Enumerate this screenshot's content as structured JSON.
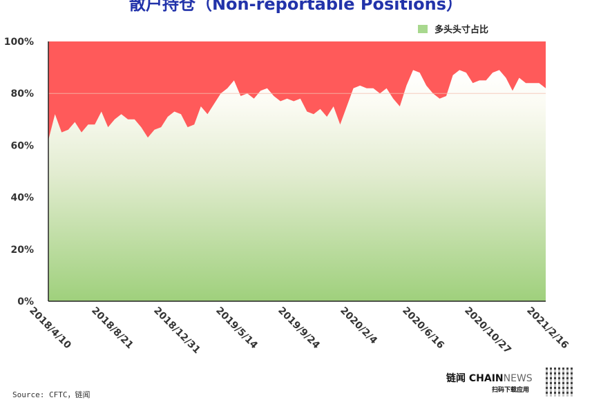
{
  "chart_data": {
    "type": "area",
    "title": "散户持仓（Non-reportable Positions）",
    "legend": [
      {
        "name": "多头头寸占比",
        "color": "#a8d88e"
      }
    ],
    "legend_placement": "top-right",
    "colors": {
      "long_fill_bottom": "#9fd07c",
      "long_fill_top": "#ffffff",
      "remainder": "#ff5a5a",
      "title": "#2233aa"
    },
    "ylim": [
      0,
      100
    ],
    "y_ticks": [
      "0%",
      "20%",
      "40%",
      "60%",
      "80%",
      "100%"
    ],
    "x_ticks": [
      "2018/4/10",
      "2018/8/21",
      "2018/12/31",
      "2019/5/14",
      "2019/9/24",
      "2020/2/4",
      "2020/6/16",
      "2020/10/27",
      "2021/2/16"
    ],
    "grid": "horizontal line at 80%",
    "series": [
      {
        "name": "多头头寸占比",
        "unit": "%",
        "x": [
          "2018-04-10",
          "2018-04-24",
          "2018-05-08",
          "2018-05-22",
          "2018-06-05",
          "2018-06-19",
          "2018-07-03",
          "2018-07-17",
          "2018-07-31",
          "2018-08-14",
          "2018-08-28",
          "2018-09-11",
          "2018-09-25",
          "2018-10-09",
          "2018-10-23",
          "2018-11-06",
          "2018-11-20",
          "2018-12-04",
          "2018-12-18",
          "2019-01-01",
          "2019-01-15",
          "2019-01-29",
          "2019-02-12",
          "2019-02-26",
          "2019-03-12",
          "2019-03-26",
          "2019-04-09",
          "2019-04-23",
          "2019-05-07",
          "2019-05-21",
          "2019-06-04",
          "2019-06-18",
          "2019-07-02",
          "2019-07-16",
          "2019-07-30",
          "2019-08-13",
          "2019-08-27",
          "2019-09-10",
          "2019-09-24",
          "2019-10-08",
          "2019-10-22",
          "2019-11-05",
          "2019-11-19",
          "2019-12-03",
          "2019-12-17",
          "2019-12-31",
          "2020-01-14",
          "2020-01-28",
          "2020-02-11",
          "2020-02-25",
          "2020-03-10",
          "2020-03-24",
          "2020-04-07",
          "2020-04-21",
          "2020-05-05",
          "2020-05-19",
          "2020-06-02",
          "2020-06-16",
          "2020-06-30",
          "2020-07-14",
          "2020-07-28",
          "2020-08-11",
          "2020-08-25",
          "2020-09-08",
          "2020-09-22",
          "2020-10-06",
          "2020-10-20",
          "2020-11-03",
          "2020-11-17",
          "2020-12-01",
          "2020-12-15",
          "2020-12-29",
          "2021-01-12",
          "2021-01-26",
          "2021-02-09",
          "2021-02-23"
        ],
        "values": [
          62,
          72,
          65,
          66,
          69,
          65,
          68,
          68,
          73,
          67,
          70,
          72,
          70,
          70,
          67,
          63,
          66,
          67,
          71,
          73,
          72,
          67,
          68,
          75,
          72,
          76,
          80,
          82,
          85,
          79,
          80,
          78,
          81,
          82,
          79,
          77,
          78,
          77,
          78,
          73,
          72,
          74,
          71,
          75,
          68,
          75,
          82,
          83,
          82,
          82,
          80,
          82,
          78,
          75,
          83,
          89,
          88,
          83,
          80,
          78,
          79,
          87,
          89,
          88,
          84,
          85,
          85,
          88,
          89,
          86,
          81,
          86,
          84,
          84,
          84,
          82
        ]
      }
    ]
  },
  "footer": {
    "source": "Source: CFTC，链闻",
    "brand_cn": "链闻 ",
    "brand_chain": "CHAIN",
    "brand_news": "NEWS",
    "brand_sub": "扫码下载应用"
  }
}
